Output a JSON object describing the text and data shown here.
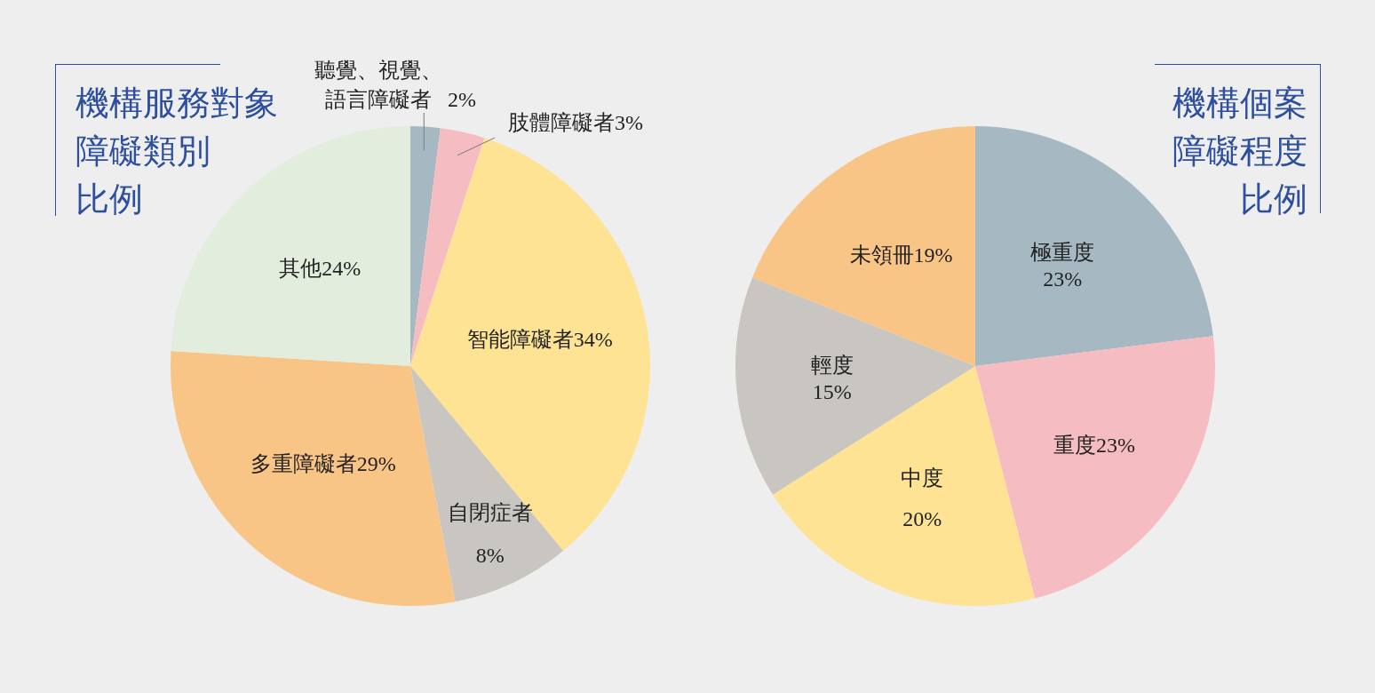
{
  "chart_data": [
    {
      "type": "pie",
      "title": "機構服務對象障礙類別比例",
      "categories": [
        "聽覺、視覺、語言障礙者",
        "肢體障礙者",
        "智能障礙者",
        "自閉症者",
        "多重障礙者",
        "其他"
      ],
      "values": [
        2,
        3,
        34,
        8,
        29,
        24
      ],
      "colors": [
        "#a6b9c2",
        "#f5bdc1",
        "#fee394",
        "#c9c5c1",
        "#f8c587",
        "#e2eddd"
      ],
      "value_labels": [
        "2%",
        "3%",
        "34%",
        "8%",
        "29%",
        "24%"
      ]
    },
    {
      "type": "pie",
      "title": "機構個案障礙程度比例",
      "categories": [
        "極重度",
        "重度",
        "中度",
        "輕度",
        "未領冊"
      ],
      "values": [
        23,
        23,
        20,
        15,
        19
      ],
      "colors": [
        "#a6b9c2",
        "#f5bdc1",
        "#fee394",
        "#c9c5c1",
        "#f8c587"
      ],
      "value_labels": [
        "23%",
        "23%",
        "20%",
        "15%",
        "19%"
      ]
    }
  ]
}
